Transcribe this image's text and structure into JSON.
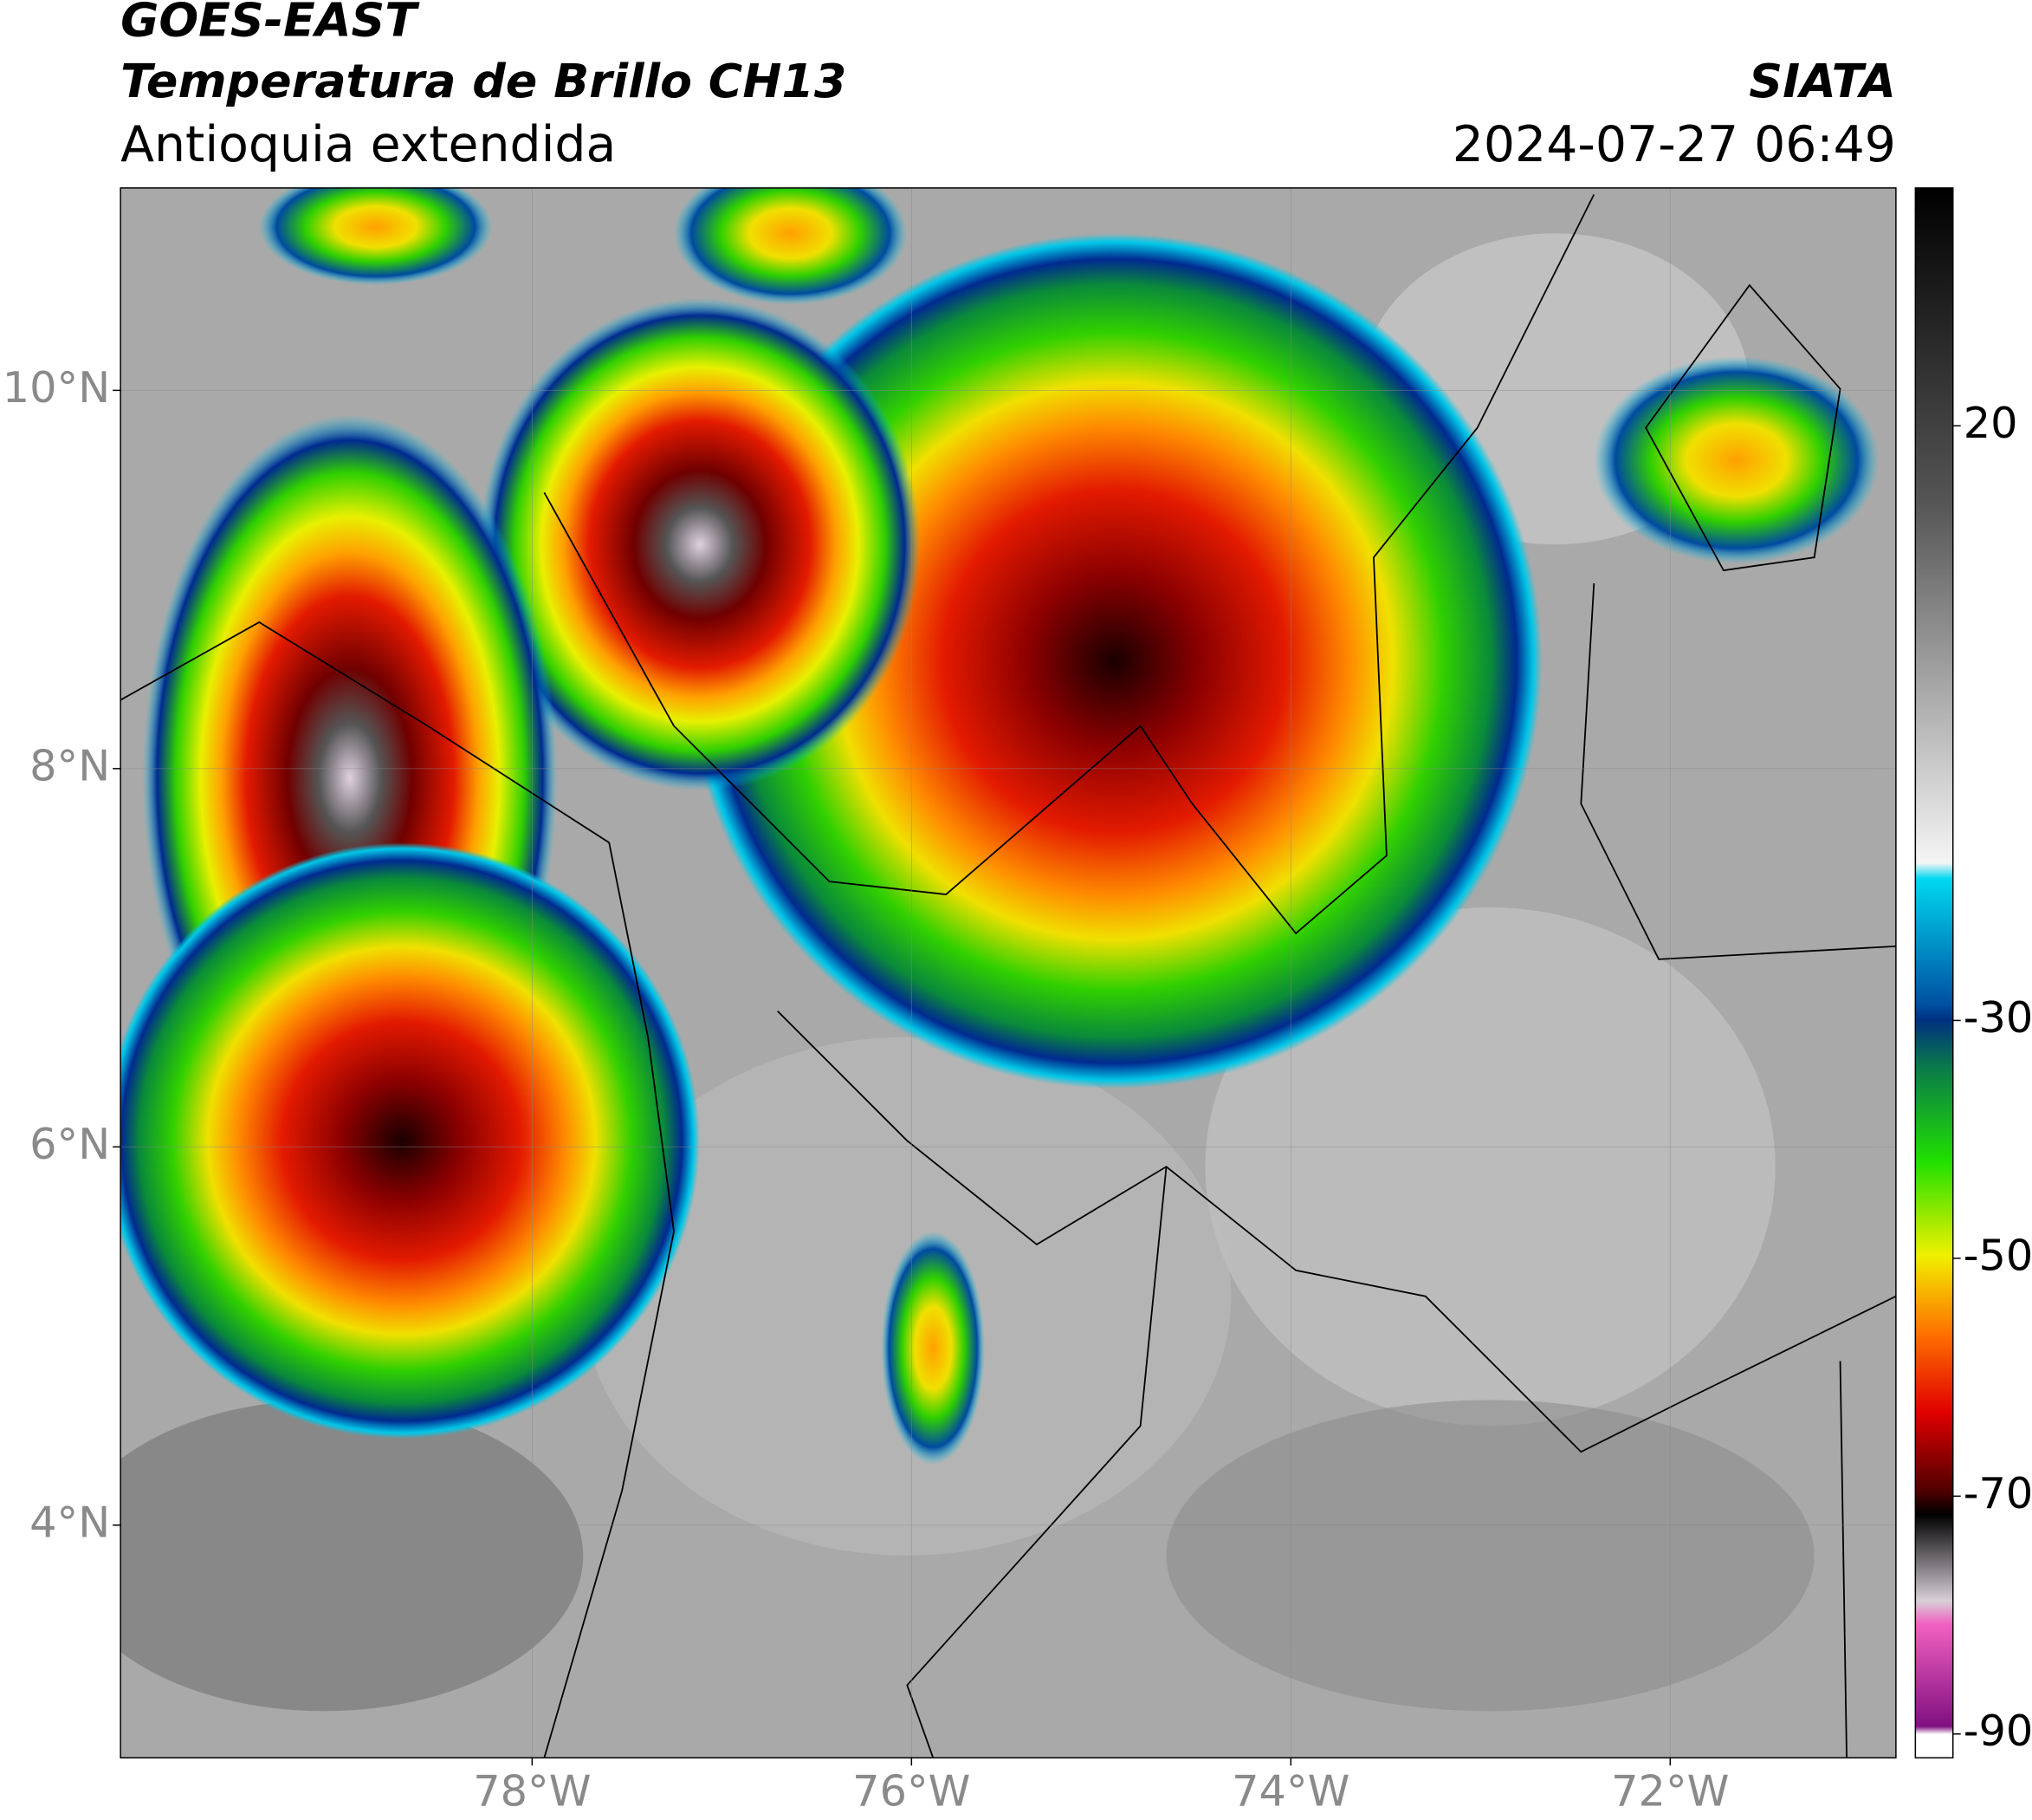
{
  "header": {
    "title": "GOES-EAST",
    "subtitle": "Temperatura de Brillo CH13",
    "region": "Antioquia extendida",
    "source": "SIATA",
    "datetime": "2024-07-27 06:49"
  },
  "map": {
    "latlim": [
      2.77,
      11.07
    ],
    "lonlim": [
      -80.17,
      -70.81
    ],
    "latticks": [
      {
        "value": 10,
        "label": "10°N"
      },
      {
        "value": 8,
        "label": "8°N"
      },
      {
        "value": 6,
        "label": "6°N"
      },
      {
        "value": 4,
        "label": "4°N"
      }
    ],
    "lonticks": [
      {
        "value": -78,
        "label": "78°W"
      },
      {
        "value": -76,
        "label": "76°W"
      },
      {
        "value": -74,
        "label": "74°W"
      },
      {
        "value": -72,
        "label": "72°W"
      }
    ]
  },
  "colorbar": {
    "lim": [
      -92,
      40
    ],
    "ticks": [
      20,
      -30,
      -50,
      -70,
      -90
    ]
  }
}
